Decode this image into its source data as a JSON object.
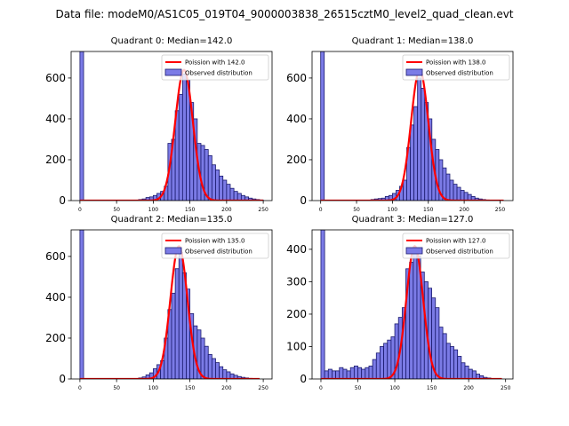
{
  "suptitle": "Data file: modeM0/AS1C05_019T04_9000003838_26515cztM0_level2_quad_clean.evt",
  "colors": {
    "bar_fill": "#7b7be6",
    "bar_edge": "#1a1a6e",
    "line": "#ff0000"
  },
  "chart_data": [
    {
      "type": "bar",
      "title": "Quadrant 0: Median=142.0",
      "legend": {
        "line_label": "Poission with 142.0",
        "bar_label": "Observed distribution",
        "placement": "top-right"
      },
      "xlim": [
        -12,
        262
      ],
      "ylim": [
        0,
        730
      ],
      "xticks": [
        0,
        50,
        100,
        150,
        200,
        250
      ],
      "yticks": [
        0,
        200,
        400,
        600
      ],
      "bin_width": 5,
      "spike": {
        "x": 0,
        "value": 730
      },
      "bins": [
        [
          80,
          5
        ],
        [
          85,
          8
        ],
        [
          90,
          15
        ],
        [
          95,
          18
        ],
        [
          100,
          25
        ],
        [
          105,
          35
        ],
        [
          110,
          45
        ],
        [
          115,
          70
        ],
        [
          120,
          280
        ],
        [
          125,
          300
        ],
        [
          130,
          440
        ],
        [
          135,
          520
        ],
        [
          140,
          620
        ],
        [
          145,
          590
        ],
        [
          150,
          480
        ],
        [
          155,
          400
        ],
        [
          160,
          280
        ],
        [
          165,
          270
        ],
        [
          170,
          250
        ],
        [
          175,
          220
        ],
        [
          180,
          175
        ],
        [
          185,
          150
        ],
        [
          190,
          120
        ],
        [
          195,
          100
        ],
        [
          200,
          80
        ],
        [
          205,
          60
        ],
        [
          210,
          45
        ],
        [
          215,
          35
        ],
        [
          220,
          25
        ],
        [
          225,
          18
        ],
        [
          230,
          12
        ],
        [
          235,
          8
        ],
        [
          240,
          5
        ],
        [
          245,
          3
        ]
      ],
      "poisson_mu": 142.0,
      "poisson_peak": 640,
      "poisson_sigma": 12,
      "poisson_range": [
        0,
        250
      ]
    },
    {
      "type": "bar",
      "title": "Quadrant 1: Median=138.0",
      "legend": {
        "line_label": "Poission with 138.0",
        "bar_label": "Observed distribution",
        "placement": "top-right"
      },
      "xlim": [
        -12,
        268
      ],
      "ylim": [
        0,
        730
      ],
      "xticks": [
        0,
        50,
        100,
        150,
        200,
        250
      ],
      "yticks": [
        0,
        200,
        400,
        600
      ],
      "bin_width": 5,
      "spike": {
        "x": 0,
        "value": 730
      },
      "bins": [
        [
          70,
          5
        ],
        [
          75,
          8
        ],
        [
          80,
          10
        ],
        [
          85,
          12
        ],
        [
          90,
          20
        ],
        [
          95,
          25
        ],
        [
          100,
          35
        ],
        [
          105,
          50
        ],
        [
          110,
          70
        ],
        [
          115,
          100
        ],
        [
          120,
          260
        ],
        [
          125,
          370
        ],
        [
          130,
          460
        ],
        [
          135,
          600
        ],
        [
          140,
          550
        ],
        [
          145,
          480
        ],
        [
          150,
          400
        ],
        [
          155,
          300
        ],
        [
          160,
          250
        ],
        [
          165,
          200
        ],
        [
          170,
          160
        ],
        [
          175,
          130
        ],
        [
          180,
          100
        ],
        [
          185,
          80
        ],
        [
          190,
          65
        ],
        [
          195,
          50
        ],
        [
          200,
          40
        ],
        [
          205,
          30
        ],
        [
          210,
          20
        ],
        [
          215,
          12
        ],
        [
          220,
          8
        ],
        [
          225,
          5
        ],
        [
          230,
          3
        ],
        [
          235,
          2
        ]
      ],
      "poisson_mu": 138.0,
      "poisson_peak": 640,
      "poisson_sigma": 12,
      "poisson_range": [
        0,
        255
      ]
    },
    {
      "type": "bar",
      "title": "Quadrant 2: Median=135.0",
      "legend": {
        "line_label": "Poission with 135.0",
        "bar_label": "Observed distribution",
        "placement": "top-right"
      },
      "xlim": [
        -12,
        262
      ],
      "ylim": [
        0,
        730
      ],
      "xticks": [
        0,
        50,
        100,
        150,
        200,
        250
      ],
      "yticks": [
        0,
        200,
        400,
        600
      ],
      "bin_width": 5,
      "spike": {
        "x": 0,
        "value": 730
      },
      "bins": [
        [
          80,
          5
        ],
        [
          85,
          10
        ],
        [
          90,
          20
        ],
        [
          95,
          30
        ],
        [
          100,
          50
        ],
        [
          105,
          70
        ],
        [
          110,
          90
        ],
        [
          115,
          200
        ],
        [
          120,
          340
        ],
        [
          125,
          420
        ],
        [
          130,
          540
        ],
        [
          135,
          620
        ],
        [
          140,
          520
        ],
        [
          145,
          440
        ],
        [
          150,
          320
        ],
        [
          155,
          260
        ],
        [
          160,
          240
        ],
        [
          165,
          200
        ],
        [
          170,
          160
        ],
        [
          175,
          120
        ],
        [
          180,
          100
        ],
        [
          185,
          80
        ],
        [
          190,
          60
        ],
        [
          195,
          45
        ],
        [
          200,
          35
        ],
        [
          205,
          25
        ],
        [
          210,
          18
        ],
        [
          215,
          12
        ],
        [
          220,
          8
        ],
        [
          225,
          5
        ],
        [
          230,
          3
        ],
        [
          235,
          2
        ]
      ],
      "poisson_mu": 135.0,
      "poisson_peak": 650,
      "poisson_sigma": 11.6,
      "poisson_range": [
        0,
        245
      ]
    },
    {
      "type": "bar",
      "title": "Quadrant 3: Median=127.0",
      "legend": {
        "line_label": "Poission with 127.0",
        "bar_label": "Observed distribution",
        "placement": "top-right"
      },
      "xlim": [
        -12,
        260
      ],
      "ylim": [
        0,
        460
      ],
      "xticks": [
        0,
        50,
        100,
        150,
        200,
        250
      ],
      "yticks": [
        0,
        100,
        200,
        300,
        400
      ],
      "bin_width": 5,
      "spike": {
        "x": 0,
        "value": 460
      },
      "bins": [
        [
          5,
          25
        ],
        [
          10,
          30
        ],
        [
          15,
          25
        ],
        [
          20,
          25
        ],
        [
          25,
          35
        ],
        [
          30,
          30
        ],
        [
          35,
          25
        ],
        [
          40,
          35
        ],
        [
          45,
          40
        ],
        [
          50,
          35
        ],
        [
          55,
          30
        ],
        [
          60,
          35
        ],
        [
          65,
          40
        ],
        [
          70,
          60
        ],
        [
          75,
          80
        ],
        [
          80,
          100
        ],
        [
          85,
          110
        ],
        [
          90,
          120
        ],
        [
          95,
          130
        ],
        [
          100,
          170
        ],
        [
          105,
          190
        ],
        [
          110,
          220
        ],
        [
          115,
          340
        ],
        [
          120,
          360
        ],
        [
          125,
          400
        ],
        [
          130,
          380
        ],
        [
          135,
          330
        ],
        [
          140,
          300
        ],
        [
          145,
          280
        ],
        [
          150,
          250
        ],
        [
          155,
          220
        ],
        [
          160,
          160
        ],
        [
          165,
          140
        ],
        [
          170,
          110
        ],
        [
          175,
          100
        ],
        [
          180,
          90
        ],
        [
          185,
          70
        ],
        [
          190,
          50
        ],
        [
          195,
          40
        ],
        [
          200,
          30
        ],
        [
          205,
          25
        ],
        [
          210,
          15
        ],
        [
          215,
          10
        ],
        [
          220,
          5
        ],
        [
          225,
          3
        ]
      ],
      "poisson_mu": 127.0,
      "poisson_peak": 410,
      "poisson_sigma": 11.3,
      "poisson_range": [
        0,
        245
      ]
    }
  ]
}
